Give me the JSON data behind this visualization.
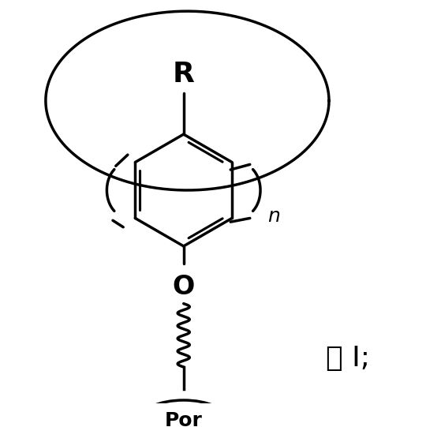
{
  "fig_width": 5.59,
  "fig_height": 5.41,
  "dpi": 100,
  "background": "#ffffff",
  "line_color": "#000000",
  "line_width": 2.5,
  "label_R": "R",
  "label_O": "O",
  "label_n": "n",
  "label_Por": "Por",
  "label_formula": "式 I;"
}
